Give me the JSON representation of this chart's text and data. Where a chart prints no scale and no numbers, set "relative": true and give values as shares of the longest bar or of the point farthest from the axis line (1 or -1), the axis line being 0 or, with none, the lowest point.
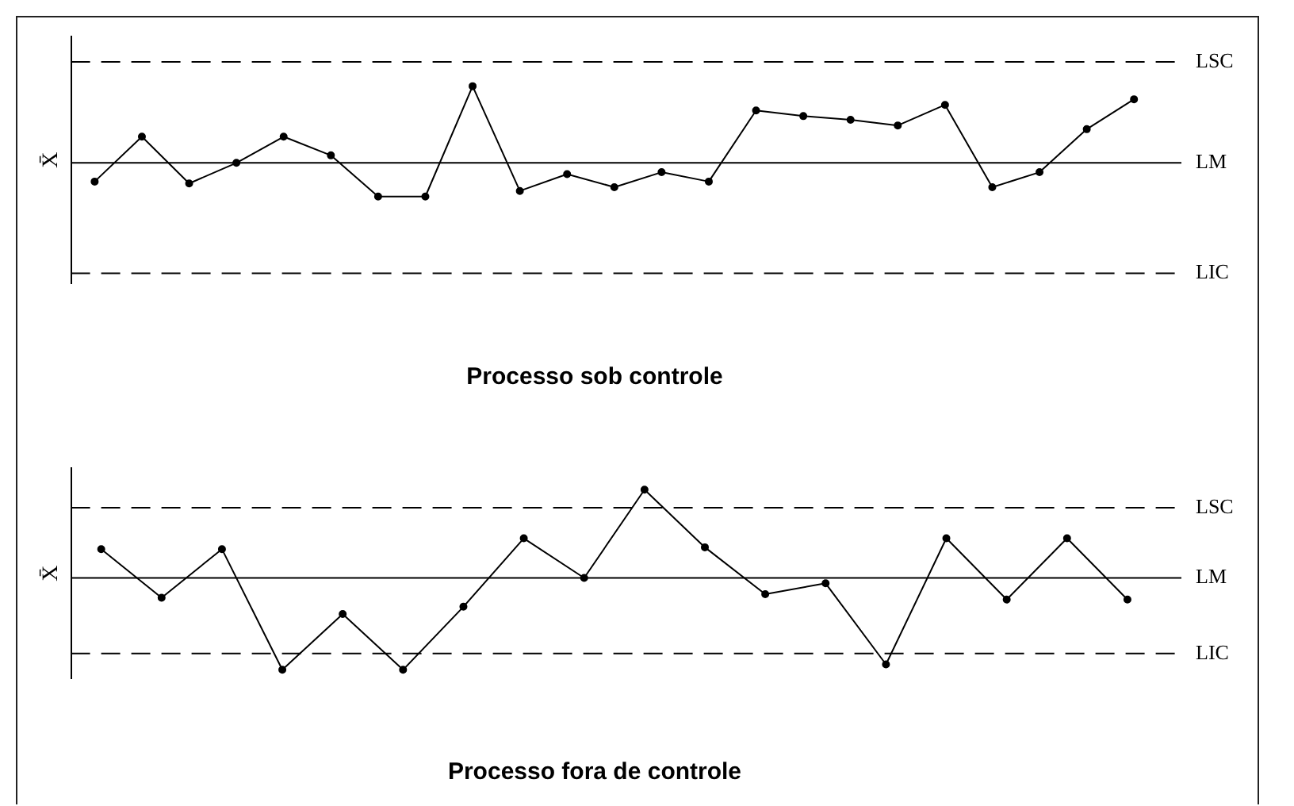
{
  "chart_data": [
    {
      "type": "line",
      "title": "Processo sob controle",
      "ylabel": "X̄",
      "relative": true,
      "grid": false,
      "legend": false,
      "marker": "circle",
      "line_style": "solid",
      "categories": [
        null,
        null,
        null,
        null,
        null,
        null,
        null,
        null,
        null,
        null,
        null,
        null,
        null,
        null,
        null,
        null,
        null,
        null,
        null,
        null,
        null,
        null,
        null
      ],
      "series": [
        {
          "color": "#000000",
          "values": [
            0.49,
            0.73,
            0.48,
            0.59,
            0.73,
            0.63,
            0.41,
            0.41,
            1,
            0.44,
            0.53,
            0.46,
            0.54,
            0.49,
            0.87,
            0.84,
            0.82,
            0.79,
            0.9,
            0.46,
            0.54,
            0.77,
            0.93
          ]
        }
      ],
      "ref_lines": [
        {
          "axis": "y",
          "value": 1.13,
          "label": "LSC",
          "line_style": "dashed",
          "color": "#000000"
        },
        {
          "axis": "y",
          "value": 0.59,
          "label": "LM",
          "line_style": "solid",
          "color": "#000000"
        },
        {
          "axis": "y",
          "value": 0,
          "label": "LIC",
          "line_style": "dashed",
          "color": "#000000"
        }
      ]
    },
    {
      "type": "line",
      "title": "Processo fora de controle",
      "ylabel": "X̄",
      "relative": true,
      "grid": false,
      "legend": false,
      "marker": "circle",
      "line_style": "solid",
      "categories": [
        null,
        null,
        null,
        null,
        null,
        null,
        null,
        null,
        null,
        null,
        null,
        null,
        null,
        null,
        null,
        null,
        null,
        null
      ],
      "series": [
        {
          "color": "#000000",
          "values": [
            0.67,
            0.4,
            0.67,
            0,
            0.31,
            0,
            0.35,
            0.73,
            0.51,
            1,
            0.68,
            0.42,
            0.48,
            0.03,
            0.73,
            0.39,
            0.73,
            0.39
          ]
        }
      ],
      "ref_lines": [
        {
          "axis": "y",
          "value": 0.9,
          "label": "LSC",
          "line_style": "dashed",
          "color": "#000000"
        },
        {
          "axis": "y",
          "value": 0.51,
          "label": "LM",
          "line_style": "solid",
          "color": "#000000"
        },
        {
          "axis": "y",
          "value": 0.09,
          "label": "LIC",
          "line_style": "dashed",
          "color": "#000000"
        }
      ]
    }
  ]
}
